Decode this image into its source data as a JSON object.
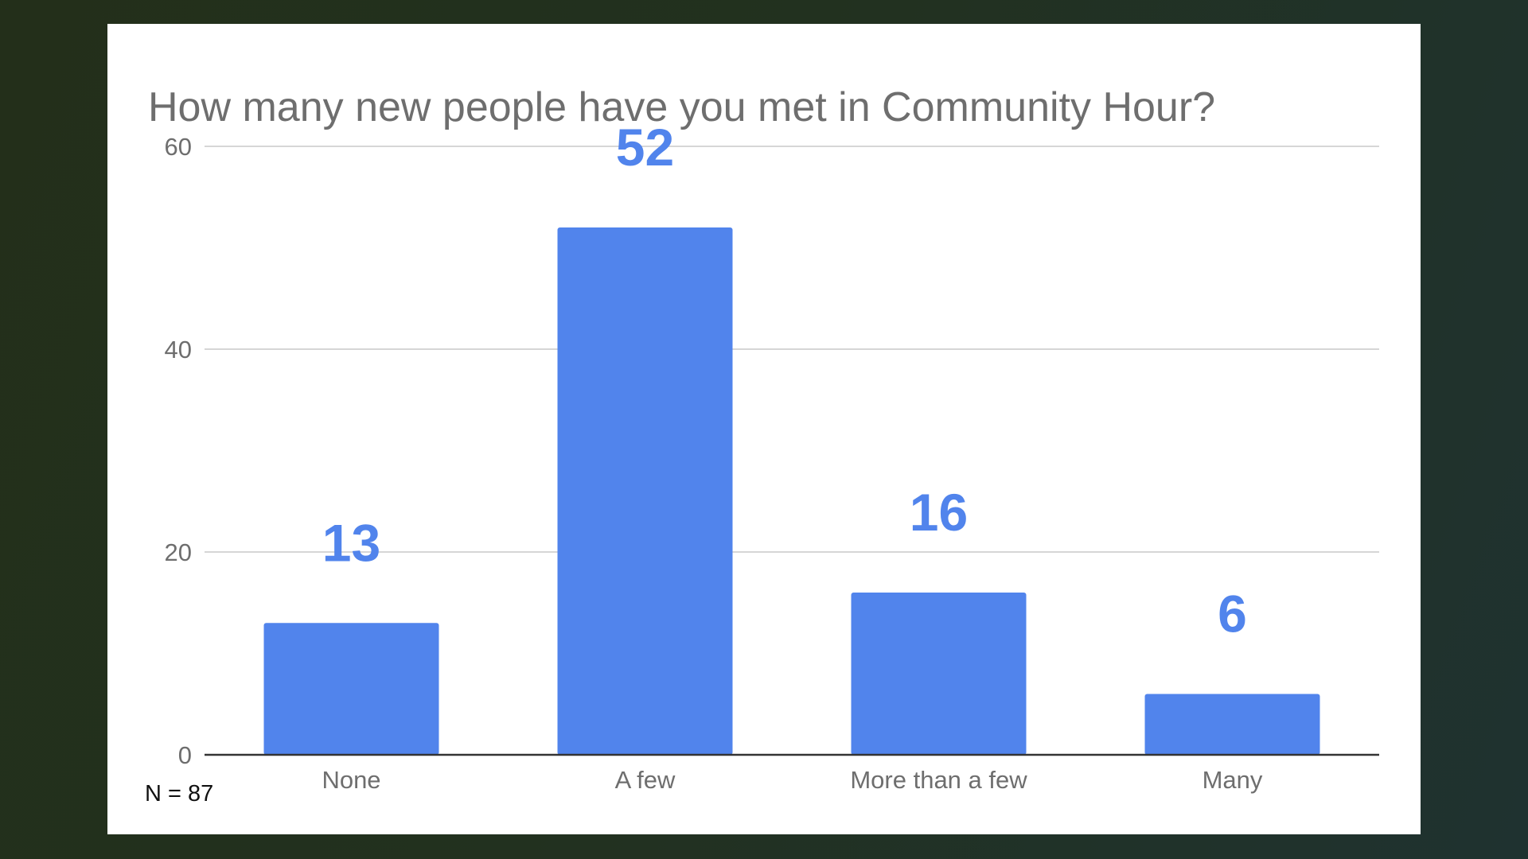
{
  "footnote": "N = 87",
  "chart_data": {
    "type": "bar",
    "title": "How many new people have you met in Community Hour?",
    "categories": [
      "None",
      "A few",
      "More than a few",
      "Many"
    ],
    "values": [
      13,
      52,
      16,
      6
    ],
    "data_labels": [
      "13",
      "52",
      "16",
      "6"
    ],
    "ylim": [
      0,
      60
    ],
    "yticks": [
      0,
      20,
      40,
      60
    ],
    "xlabel": "",
    "ylabel": "",
    "grid": true,
    "legend": "none",
    "bar_color": "#5184ec",
    "label_color": "#5184ec"
  }
}
